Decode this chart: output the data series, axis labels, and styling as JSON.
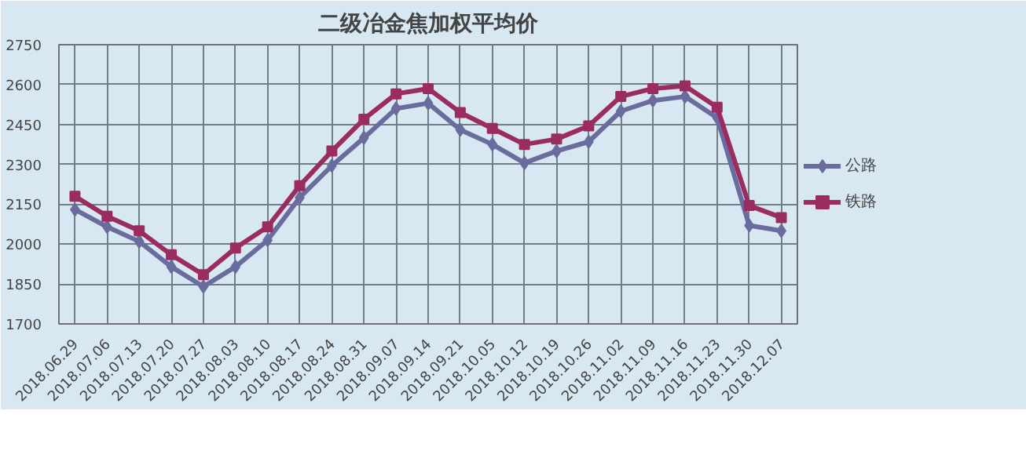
{
  "chart_data": {
    "type": "line",
    "title": "二级冶金焦加权平均价",
    "categories": [
      "2018.06.29",
      "2018.07.06",
      "2018.07.13",
      "2018.07.20",
      "2018.07.27",
      "2018.08.03",
      "2018.08.10",
      "2018.08.17",
      "2018.08.24",
      "2018.08.31",
      "2018.09.07",
      "2018.09.14",
      "2018.09.21",
      "2018.10.05",
      "2018.10.12",
      "2018.10.19",
      "2018.10.26",
      "2018.11.02",
      "2018.11.09",
      "2018.11.16",
      "2018.11.23",
      "2018.11.30",
      "2018.12.07"
    ],
    "series": [
      {
        "name": "公路",
        "color": "#6a6c9e",
        "marker": "diamond",
        "values": [
          2130,
          2065,
          2010,
          1915,
          1840,
          1915,
          2015,
          2175,
          2295,
          2400,
          2510,
          2530,
          2430,
          2375,
          2305,
          2350,
          2385,
          2500,
          2540,
          2555,
          2475,
          2070,
          2050
        ]
      },
      {
        "name": "铁路",
        "color": "#9b2c60",
        "marker": "square",
        "values": [
          2180,
          2105,
          2050,
          1960,
          1885,
          1985,
          2065,
          2220,
          2350,
          2470,
          2565,
          2585,
          2495,
          2435,
          2375,
          2395,
          2445,
          2555,
          2585,
          2595,
          2515,
          2145,
          2100
        ]
      }
    ],
    "ylim": [
      1700,
      2750
    ],
    "yticks": [
      1700,
      1850,
      2000,
      2150,
      2300,
      2450,
      2600,
      2750
    ],
    "grid": true,
    "legend": "right"
  }
}
